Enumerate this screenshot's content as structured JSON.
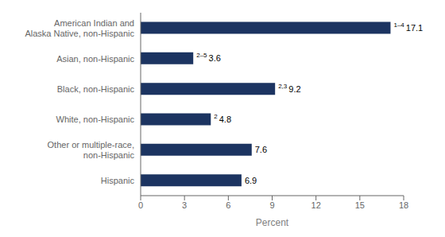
{
  "chart_data": {
    "type": "bar",
    "orientation": "horizontal",
    "categories": [
      "American Indian and\nAlaska Native, non-Hispanic",
      "Asian, non-Hispanic",
      "Black, non-Hispanic",
      "White, non-Hispanic",
      "Other or multiple-race,\nnon-Hispanic",
      "Hispanic"
    ],
    "values": [
      17.1,
      3.6,
      9.2,
      4.8,
      7.6,
      6.9
    ],
    "annotations": [
      "1–4",
      "2–5",
      "2,3",
      "2",
      null,
      null
    ],
    "data_labels": true,
    "color": "#1c3461",
    "xlabel": "Percent",
    "xlim": [
      0,
      18
    ],
    "xticks": [
      0,
      3,
      6,
      9,
      12,
      15,
      18
    ],
    "grid": false
  }
}
